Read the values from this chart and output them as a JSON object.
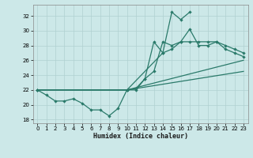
{
  "xlabel": "Humidex (Indice chaleur)",
  "xlim": [
    -0.5,
    23.5
  ],
  "ylim": [
    17.5,
    33.5
  ],
  "yticks": [
    18,
    20,
    22,
    24,
    26,
    28,
    30,
    32
  ],
  "xticks": [
    0,
    1,
    2,
    3,
    4,
    5,
    6,
    7,
    8,
    9,
    10,
    11,
    12,
    13,
    14,
    15,
    16,
    17,
    18,
    19,
    20,
    21,
    22,
    23
  ],
  "bg_color": "#cce8e8",
  "grid_color": "#b0d0d0",
  "line_color": "#2a7a6a",
  "line1_x": [
    0,
    1,
    2,
    3,
    4,
    5,
    6,
    7,
    8,
    9,
    10,
    11,
    12,
    13,
    14,
    15,
    16,
    17
  ],
  "line1_y": [
    22,
    21.3,
    20.5,
    20.5,
    20.8,
    20.2,
    19.3,
    19.3,
    18.5,
    19.5,
    22,
    22,
    23.5,
    28.5,
    27,
    32.5,
    31.5,
    32.5
  ],
  "line2_x": [
    0,
    10,
    11,
    12,
    13,
    14,
    15,
    16,
    17,
    18,
    19,
    20,
    21,
    22,
    23
  ],
  "line2_y": [
    22,
    22,
    22.2,
    23.5,
    24.5,
    28.5,
    28,
    28.5,
    28.5,
    28.5,
    28.5,
    28.5,
    28,
    27.5,
    27
  ],
  "line3_x": [
    0,
    10,
    14,
    15,
    16,
    17,
    18,
    19,
    20,
    21,
    22,
    23
  ],
  "line3_y": [
    22,
    22,
    27,
    27.5,
    28.5,
    30.2,
    28,
    28,
    28.5,
    27.5,
    27,
    26.5
  ],
  "line4_x": [
    0,
    10,
    23
  ],
  "line4_y": [
    22,
    22,
    26
  ],
  "line5_x": [
    0,
    10,
    23
  ],
  "line5_y": [
    22,
    22,
    24.5
  ]
}
